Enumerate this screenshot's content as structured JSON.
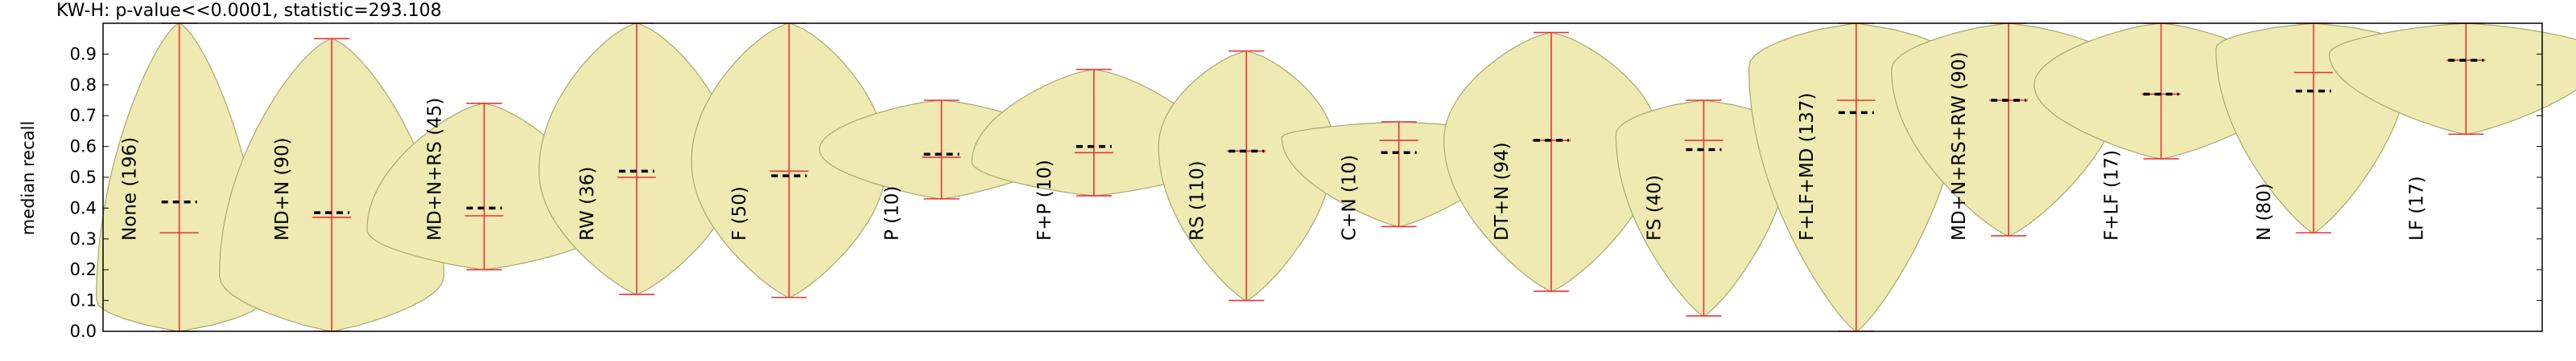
{
  "chart_data": {
    "type": "violin",
    "title": "KW-H: p-value<<0.0001, statistic=293.108",
    "ylabel": "median recall",
    "ylim": [
      0.0,
      1.0
    ],
    "yticks": [
      "0.0",
      "0.1",
      "0.2",
      "0.3",
      "0.4",
      "0.5",
      "0.6",
      "0.7",
      "0.8",
      "0.9"
    ],
    "grid": false,
    "colors": {
      "violin_fill": "#eeeab2",
      "violin_edge": "#a8a870",
      "whisker": "#ee3333",
      "median_mark": "#000000"
    },
    "categories": [
      "None (196)",
      "MD+N (90)",
      "MD+N+RS (45)",
      "RW (36)",
      "F (50)",
      "P (10)",
      "F+P (10)",
      "RS (110)",
      "C+N (10)",
      "DT+N (94)",
      "FS (40)",
      "F+LF+MD (137)",
      "MD+N+RS+RW (90)",
      "F+LF (17)",
      "N (80)",
      "LF (17)"
    ],
    "series": [
      {
        "min": 0.0,
        "max": 1.0,
        "mean": 0.32,
        "median": 0.42,
        "peak": 0.1,
        "halfwidth": 0.034
      },
      {
        "min": 0.0,
        "max": 0.95,
        "mean": 0.37,
        "median": 0.385,
        "peak": 0.18,
        "halfwidth": 0.046
      },
      {
        "min": 0.2,
        "max": 0.74,
        "mean": 0.375,
        "median": 0.4,
        "peak": 0.33,
        "halfwidth": 0.048
      },
      {
        "min": 0.12,
        "max": 1.0,
        "mean": 0.5,
        "median": 0.52,
        "peak": 0.52,
        "halfwidth": 0.04
      },
      {
        "min": 0.11,
        "max": 1.0,
        "mean": 0.52,
        "median": 0.505,
        "peak": 0.55,
        "halfwidth": 0.04
      },
      {
        "min": 0.43,
        "max": 0.75,
        "mean": 0.565,
        "median": 0.575,
        "peak": 0.59,
        "halfwidth": 0.05
      },
      {
        "min": 0.44,
        "max": 0.85,
        "mean": 0.58,
        "median": 0.6,
        "peak": 0.55,
        "halfwidth": 0.05
      },
      {
        "min": 0.1,
        "max": 0.91,
        "mean": 0.585,
        "median": 0.585,
        "peak": 0.6,
        "halfwidth": 0.036
      },
      {
        "min": 0.34,
        "max": 0.68,
        "mean": 0.62,
        "median": 0.58,
        "peak": 0.63,
        "halfwidth": 0.048
      },
      {
        "min": 0.13,
        "max": 0.97,
        "mean": 0.62,
        "median": 0.62,
        "peak": 0.62,
        "halfwidth": 0.044
      },
      {
        "min": 0.05,
        "max": 0.75,
        "mean": 0.62,
        "median": 0.59,
        "peak": 0.64,
        "halfwidth": 0.036
      },
      {
        "min": 0.0,
        "max": 1.0,
        "mean": 0.75,
        "median": 0.71,
        "peak": 0.86,
        "halfwidth": 0.044
      },
      {
        "min": 0.31,
        "max": 1.0,
        "mean": 0.75,
        "median": 0.75,
        "peak": 0.85,
        "halfwidth": 0.048
      },
      {
        "min": 0.56,
        "max": 1.0,
        "mean": 0.77,
        "median": 0.77,
        "peak": 0.8,
        "halfwidth": 0.052
      },
      {
        "min": 0.32,
        "max": 1.0,
        "mean": 0.84,
        "median": 0.78,
        "peak": 0.92,
        "halfwidth": 0.04
      },
      {
        "min": 0.64,
        "max": 1.0,
        "mean": 0.88,
        "median": 0.88,
        "peak": 0.9,
        "halfwidth": 0.056
      }
    ]
  }
}
